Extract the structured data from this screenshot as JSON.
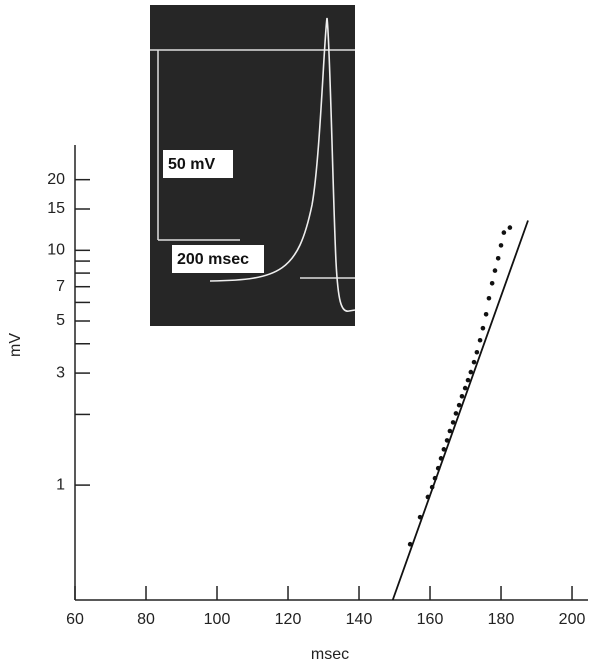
{
  "chart_data": {
    "type": "scatter",
    "x_label": "msec",
    "y_label": "mV",
    "log_y": true,
    "color": "#111111",
    "xlim": [
      60,
      204.5
    ],
    "xticks": [
      60,
      80,
      100,
      120,
      140,
      160,
      180,
      200
    ],
    "ylim": [
      0.324,
      28.1
    ],
    "yticks": [
      1,
      3,
      5,
      7,
      10,
      15,
      20
    ],
    "minor_yticks": [
      2,
      4,
      6,
      8,
      9
    ],
    "points": {
      "x": [
        154.4,
        157.2,
        159.4,
        160.6,
        161.4,
        162.3,
        163.1,
        163.9,
        164.8,
        165.6,
        166.5,
        167.3,
        168.2,
        169.0,
        169.9,
        170.7,
        171.5,
        172.4,
        173.2,
        174.1,
        174.9,
        175.8,
        176.6,
        177.5,
        178.3,
        179.2,
        180.0,
        180.8,
        182.5
      ],
      "values": [
        0.56,
        0.73,
        0.89,
        0.98,
        1.07,
        1.18,
        1.3,
        1.42,
        1.55,
        1.7,
        1.85,
        2.02,
        2.19,
        2.39,
        2.59,
        2.8,
        3.03,
        3.34,
        3.68,
        4.14,
        4.66,
        5.34,
        6.25,
        7.24,
        8.2,
        9.25,
        10.5,
        11.9,
        12.5
      ]
    },
    "fit_line": {
      "x": [
        149.5,
        187.6
      ],
      "values": [
        0.324,
        13.4
      ]
    },
    "inset": {
      "voltage_scale": "50 mV",
      "time_scale": "200 msec"
    }
  }
}
